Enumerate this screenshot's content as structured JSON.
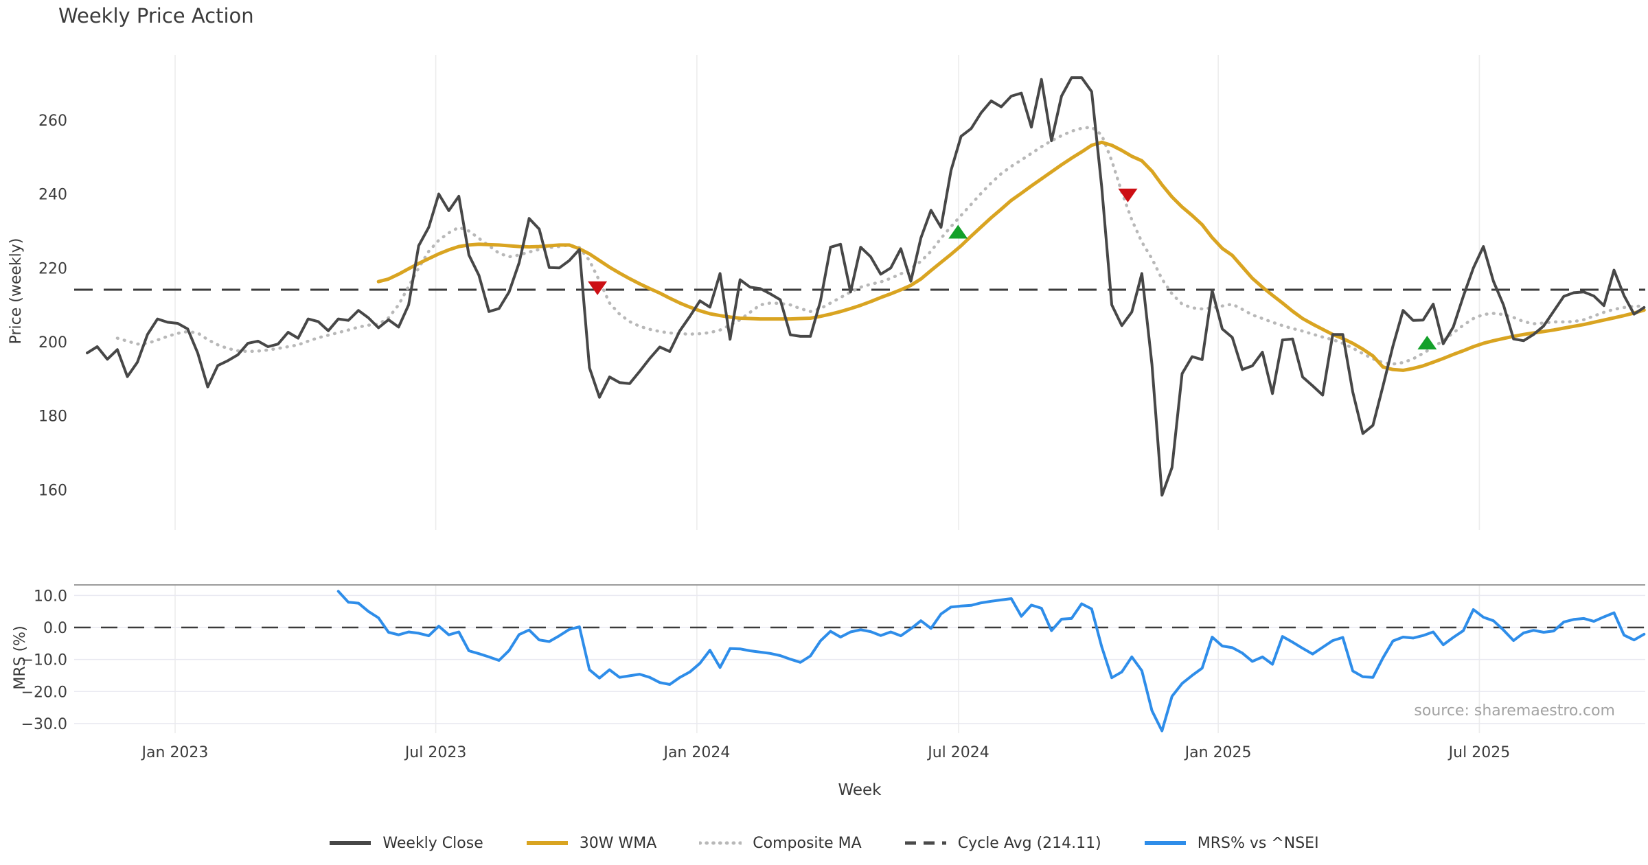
{
  "title": "Weekly Price Action",
  "source_note": "source: sharemaestro.com",
  "axes": {
    "price_ylabel": "Price (weekly)",
    "mrs_ylabel": "MRS (%)",
    "xlabel": "Week",
    "price_ticks": [
      260,
      240,
      220,
      200,
      180,
      160
    ],
    "mrs_ticks": [
      10.0,
      0.0,
      -10.0,
      -20.0,
      -30.0
    ],
    "x_ticks": [
      {
        "label": "Jan 2023",
        "week": 8.75
      },
      {
        "label": "Jul 2023",
        "week": 34.7
      },
      {
        "label": "Jan 2024",
        "week": 60.7
      },
      {
        "label": "Jul 2024",
        "week": 86.75
      },
      {
        "label": "Jan 2025",
        "week": 112.6
      },
      {
        "label": "Jul 2025",
        "week": 138.6
      }
    ]
  },
  "legend": [
    {
      "label": "Weekly Close",
      "style": "solid",
      "color": "#474747"
    },
    {
      "label": "30W WMA",
      "style": "solid",
      "color": "#d9a421"
    },
    {
      "label": "Composite MA",
      "style": "dotted",
      "color": "#b8b8b8"
    },
    {
      "label": "Cycle Avg (214.11)",
      "style": "dashed",
      "color": "#4a4a4a"
    },
    {
      "label": "MRS% vs ^NSEI",
      "style": "solid",
      "color": "#2e8de9"
    }
  ],
  "chart_data": [
    {
      "type": "line",
      "panel": "price",
      "title": "Weekly Price Action",
      "ylabel": "Price (weekly)",
      "xlabel": "Week",
      "ylim": [
        149,
        277
      ],
      "grid": "vertical-only",
      "cycle_avg": 214.11,
      "series": [
        {
          "name": "Weekly Close",
          "color": "#474747",
          "width": 4,
          "start_week": 0,
          "values": [
            197.0,
            198.7,
            195.3,
            197.9,
            190.6,
            194.5,
            202.0,
            206.2,
            205.3,
            205.0,
            203.5,
            197.0,
            187.8,
            193.6,
            194.9,
            196.5,
            199.6,
            200.2,
            198.7,
            199.4,
            202.6,
            201.0,
            206.2,
            205.5,
            203.0,
            206.2,
            205.8,
            208.5,
            206.5,
            203.8,
            206.0,
            204.0,
            210.0,
            226.0,
            231.0,
            240.0,
            235.5,
            239.4,
            223.5,
            218.0,
            208.2,
            209.0,
            213.5,
            221.4,
            233.4,
            230.5,
            220.1,
            220.0,
            222.0,
            225.0,
            193.0,
            185.0,
            190.5,
            189.0,
            188.7,
            192.0,
            195.5,
            198.6,
            197.4,
            203.0,
            206.9,
            211.1,
            209.4,
            218.5,
            200.7,
            216.8,
            214.8,
            214.4,
            213.0,
            211.4,
            201.9,
            201.5,
            201.5,
            211.0,
            225.6,
            226.4,
            213.5,
            225.6,
            223.0,
            218.3,
            220.0,
            225.2,
            216.4,
            228.1,
            235.6,
            231.0,
            246.4,
            255.6,
            257.7,
            262.0,
            265.2,
            263.6,
            266.5,
            267.3,
            258.1,
            271.0,
            254.4,
            266.5,
            271.5,
            271.5,
            267.7,
            242.0,
            210.0,
            204.4,
            208.1,
            218.5,
            193.9,
            158.5,
            166.0,
            191.4,
            196.0,
            195.2,
            213.9,
            203.5,
            201.2,
            192.5,
            193.5,
            197.2,
            186.0,
            200.5,
            200.8,
            190.5,
            188.1,
            185.6,
            202.0,
            202.0,
            186.4,
            175.2,
            177.4,
            188.0,
            198.9,
            208.5,
            205.8,
            205.9,
            210.2,
            199.5,
            204.0,
            212.3,
            220.0,
            225.8,
            216.4,
            210.0,
            200.8,
            200.3,
            202.0,
            204.3,
            208.3,
            212.3,
            213.3,
            213.5,
            212.4,
            209.8,
            219.4,
            212.5,
            207.5,
            209.3
          ]
        },
        {
          "name": "30W WMA",
          "color": "#d9a421",
          "width": 5,
          "start_week": 29,
          "values": [
            216.3,
            217.0,
            218.3,
            219.8,
            221.2,
            222.5,
            223.8,
            224.9,
            225.8,
            226.2,
            226.4,
            226.3,
            226.2,
            226.0,
            225.8,
            225.7,
            225.8,
            226.0,
            226.2,
            226.2,
            225.2,
            223.8,
            222.0,
            220.2,
            218.6,
            217.1,
            215.7,
            214.4,
            213.2,
            211.8,
            210.5,
            209.4,
            208.4,
            207.6,
            207.1,
            206.7,
            206.4,
            206.3,
            206.2,
            206.2,
            206.2,
            206.2,
            206.3,
            206.4,
            206.9,
            207.5,
            208.2,
            209.0,
            209.9,
            210.9,
            212.0,
            213.0,
            214.1,
            215.3,
            217.0,
            219.3,
            221.5,
            223.7,
            226.0,
            228.6,
            231.1,
            233.6,
            235.9,
            238.3,
            240.2,
            242.2,
            244.1,
            246.0,
            247.9,
            249.7,
            251.4,
            253.2,
            254.0,
            253.2,
            251.8,
            250.2,
            249.0,
            246.2,
            242.5,
            239.2,
            236.5,
            234.2,
            231.7,
            228.2,
            225.3,
            223.4,
            220.3,
            217.2,
            214.8,
            212.6,
            210.5,
            208.3,
            206.3,
            204.8,
            203.4,
            202.0,
            200.9,
            199.6,
            198.0,
            196.2,
            193.2,
            192.5,
            192.3,
            192.8,
            193.5,
            194.5,
            195.5,
            196.6,
            197.6,
            198.7,
            199.6,
            200.3,
            200.9,
            201.5,
            202.0,
            202.4,
            202.8,
            203.2,
            203.7,
            204.2,
            204.7,
            205.3,
            205.9,
            206.5,
            207.1,
            207.8,
            208.6
          ]
        },
        {
          "name": "Composite MA",
          "color": "#b8b8b8",
          "width": 4.5,
          "dash": "dotted",
          "start_week": 3,
          "values": [
            201.0,
            200.2,
            199.4,
            199.6,
            200.5,
            201.5,
            202.3,
            202.8,
            202.4,
            200.6,
            199.2,
            198.2,
            197.6,
            197.4,
            197.5,
            197.8,
            198.2,
            198.7,
            199.2,
            200.2,
            201.1,
            201.8,
            202.5,
            203.2,
            204.0,
            204.5,
            204.8,
            206.5,
            210.0,
            215.0,
            220.0,
            224.5,
            227.5,
            229.5,
            231.0,
            230.0,
            228.0,
            226.0,
            224.0,
            223.0,
            223.5,
            224.3,
            225.0,
            225.5,
            225.8,
            226.2,
            225.5,
            222.0,
            216.5,
            210.5,
            207.5,
            205.5,
            204.2,
            203.4,
            202.8,
            202.4,
            202.2,
            202.1,
            202.2,
            202.5,
            203.2,
            204.5,
            206.0,
            208.0,
            210.0,
            210.5,
            210.4,
            210.0,
            209.0,
            208.2,
            209.0,
            210.5,
            212.0,
            213.5,
            214.8,
            215.6,
            216.2,
            217.2,
            218.4,
            219.8,
            221.8,
            224.5,
            228.0,
            231.2,
            234.2,
            237.2,
            240.2,
            243.0,
            245.5,
            247.5,
            249.2,
            251.0,
            252.8,
            254.4,
            255.8,
            257.0,
            257.8,
            258.1,
            256.0,
            249.0,
            240.5,
            233.0,
            227.0,
            222.5,
            217.0,
            213.0,
            210.2,
            209.2,
            208.9,
            209.2,
            209.7,
            210.2,
            208.8,
            207.3,
            206.3,
            205.3,
            204.4,
            203.6,
            202.9,
            202.1,
            201.3,
            200.6,
            199.6,
            198.3,
            196.8,
            195.4,
            194.4,
            194.0,
            194.4,
            195.4,
            196.9,
            198.5,
            200.4,
            202.4,
            204.5,
            206.3,
            207.4,
            207.7,
            207.4,
            206.6,
            205.5,
            204.9,
            205.1,
            205.4,
            205.4,
            205.5,
            206.0,
            207.0,
            208.0,
            208.8,
            209.3,
            209.6,
            209.7
          ]
        }
      ],
      "signals": [
        {
          "type": "sell",
          "week": 50.8,
          "price": 214.5,
          "color": "#cc0f14"
        },
        {
          "type": "buy",
          "week": 86.7,
          "price": 229.8,
          "color": "#14a02a"
        },
        {
          "type": "sell",
          "week": 103.6,
          "price": 239.6,
          "color": "#cc0f14"
        },
        {
          "type": "buy",
          "week": 133.4,
          "price": 199.8,
          "color": "#14a02a"
        }
      ]
    },
    {
      "type": "line",
      "panel": "mrs",
      "ylabel": "MRS (%)",
      "ylim": [
        -36,
        14
      ],
      "zero_line_dashed": true,
      "series": [
        {
          "name": "MRS% vs ^NSEI",
          "color": "#2e8de9",
          "width": 4,
          "start_week": 25,
          "values": [
            11.3,
            7.9,
            7.6,
            5.0,
            3.0,
            -1.5,
            -2.3,
            -1.4,
            -1.8,
            -2.6,
            0.4,
            -2.3,
            -1.4,
            -7.3,
            -8.2,
            -9.2,
            -10.3,
            -7.2,
            -2.2,
            -0.8,
            -3.9,
            -4.4,
            -2.6,
            -0.6,
            0.2,
            -13.2,
            -15.8,
            -13.2,
            -15.6,
            -15.1,
            -14.6,
            -15.6,
            -17.2,
            -17.8,
            -15.6,
            -13.9,
            -11.2,
            -7.1,
            -12.5,
            -6.6,
            -6.7,
            -7.3,
            -7.7,
            -8.1,
            -8.8,
            -9.9,
            -10.9,
            -8.9,
            -4.2,
            -1.2,
            -3.0,
            -1.4,
            -0.7,
            -1.3,
            -2.5,
            -1.4,
            -2.6,
            -0.4,
            2.1,
            -0.3,
            4.2,
            6.4,
            6.7,
            6.9,
            7.7,
            8.2,
            8.6,
            9.0,
            3.5,
            7.0,
            6.0,
            -1.0,
            2.6,
            2.8,
            7.4,
            5.8,
            -6.0,
            -15.7,
            -13.9,
            -9.2,
            -13.5,
            -26.0,
            -32.3,
            -21.5,
            -17.5,
            -15.0,
            -12.7,
            -3.0,
            -5.8,
            -6.3,
            -8.0,
            -10.6,
            -9.2,
            -11.5,
            -2.8,
            -4.6,
            -6.5,
            -8.3,
            -6.2,
            -4.1,
            -3.1,
            -13.6,
            -15.4,
            -15.6,
            -9.5,
            -4.2,
            -3.0,
            -3.3,
            -2.5,
            -1.4,
            -5.4,
            -3.1,
            -1.0,
            5.6,
            3.2,
            2.1,
            -0.8,
            -4.1,
            -1.7,
            -0.9,
            -1.5,
            -1.1,
            1.7,
            2.5,
            2.8,
            1.9,
            3.3,
            4.6,
            -2.4,
            -3.9,
            -2.1
          ]
        }
      ]
    }
  ]
}
